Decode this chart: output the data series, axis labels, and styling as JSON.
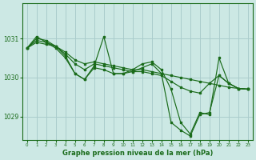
{
  "background_color": "#cce8e4",
  "grid_color": "#aacccc",
  "line_color": "#1a6b1a",
  "title": "Graphe pression niveau de la mer (hPa)",
  "xlim": [
    -0.5,
    23.5
  ],
  "ylim": [
    1028.4,
    1031.9
  ],
  "yticks": [
    1029,
    1030,
    1031
  ],
  "xticks": [
    0,
    1,
    2,
    3,
    4,
    5,
    6,
    7,
    8,
    9,
    10,
    11,
    12,
    13,
    14,
    15,
    16,
    17,
    18,
    19,
    20,
    21,
    22,
    23
  ],
  "series": [
    {
      "x": [
        0,
        1,
        2,
        3,
        4,
        5,
        6,
        7,
        8,
        9,
        10,
        11,
        12,
        13,
        14,
        15,
        16,
        17,
        18,
        19,
        20,
        21,
        22,
        23
      ],
      "y": [
        1030.75,
        1030.9,
        1030.85,
        1030.8,
        1030.65,
        1030.45,
        1030.35,
        1030.4,
        1030.35,
        1030.3,
        1030.25,
        1030.2,
        1030.2,
        1030.15,
        1030.1,
        1030.05,
        1030.0,
        1029.95,
        1029.9,
        1029.85,
        1029.8,
        1029.75,
        1029.72,
        1029.7
      ]
    },
    {
      "x": [
        0,
        1,
        2,
        3,
        4,
        5,
        6,
        7,
        8,
        9,
        10,
        11,
        12,
        13,
        14,
        15,
        16,
        17,
        18,
        19,
        20,
        21,
        22,
        23
      ],
      "y": [
        1030.75,
        1030.95,
        1030.9,
        1030.8,
        1030.6,
        1030.35,
        1030.2,
        1030.35,
        1030.3,
        1030.25,
        1030.2,
        1030.15,
        1030.15,
        1030.1,
        1030.05,
        1029.9,
        1029.75,
        1029.65,
        1029.6,
        1029.85,
        1030.05,
        1029.85,
        1029.72,
        1029.7
      ]
    },
    {
      "x": [
        0,
        1,
        2,
        3,
        4,
        5,
        6,
        7,
        8,
        9,
        10,
        11,
        12,
        13,
        14,
        15,
        16,
        17,
        18,
        19,
        20,
        21,
        22,
        23
      ],
      "y": [
        1030.75,
        1031.0,
        1030.95,
        1030.8,
        1030.55,
        1030.1,
        1029.95,
        1030.3,
        1031.05,
        1030.1,
        1030.1,
        1030.2,
        1030.35,
        1030.4,
        1030.2,
        1029.7,
        1028.85,
        1028.55,
        1029.1,
        1029.05,
        1030.5,
        1029.85,
        1029.72,
        1029.7
      ]
    },
    {
      "x": [
        0,
        1,
        2,
        3,
        4,
        5,
        6,
        7,
        8,
        9,
        10,
        11,
        12,
        13,
        14,
        15,
        16,
        17,
        18,
        19,
        20,
        21,
        22,
        23
      ],
      "y": [
        1030.75,
        1031.05,
        1030.9,
        1030.75,
        1030.5,
        1030.1,
        1029.95,
        1030.25,
        1030.2,
        1030.1,
        1030.1,
        1030.15,
        1030.25,
        1030.35,
        1030.1,
        1028.85,
        1028.65,
        1028.5,
        1029.05,
        1029.1,
        1030.05,
        1029.85,
        1029.72,
        1029.7
      ]
    }
  ]
}
